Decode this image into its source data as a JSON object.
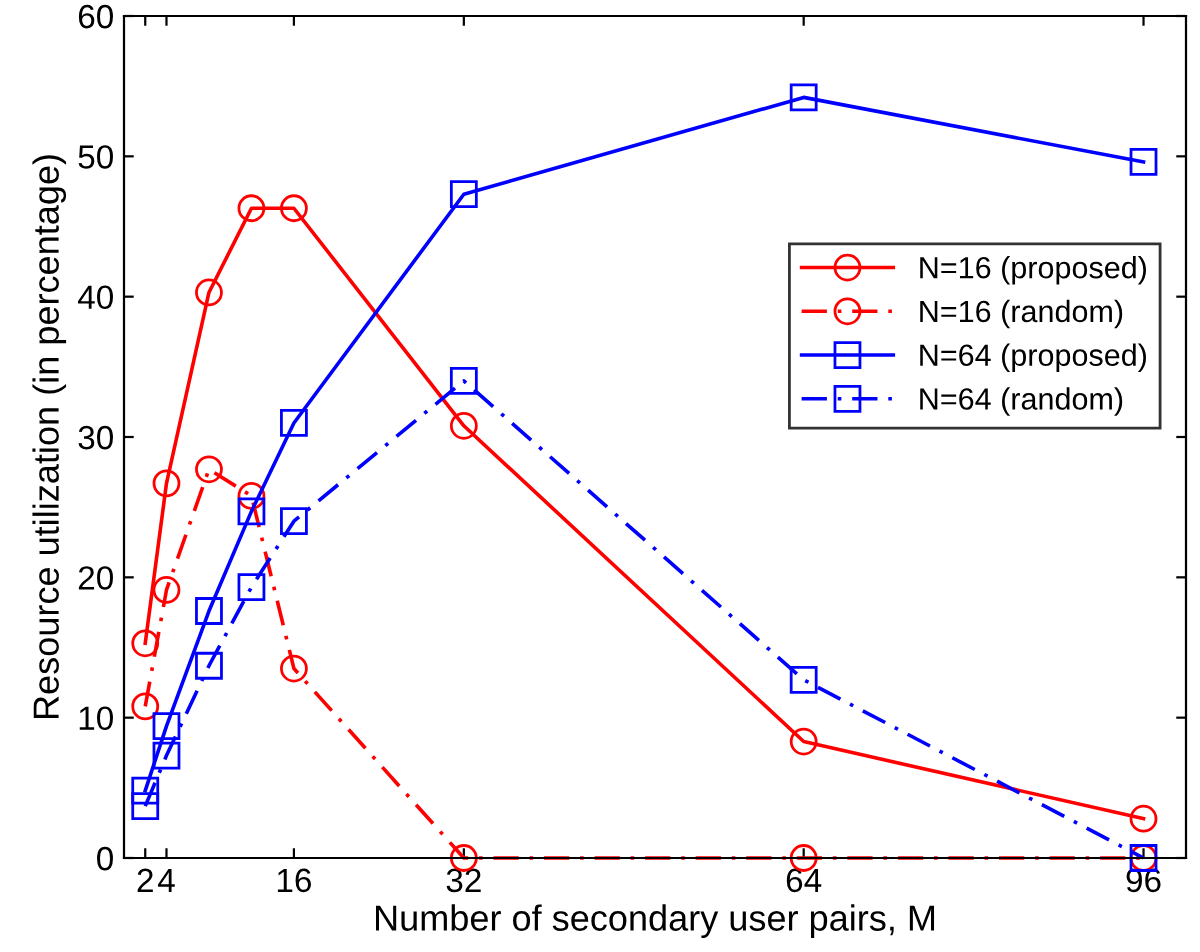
{
  "chart_data": {
    "type": "line",
    "xlabel": "Number of secondary user pairs, M",
    "ylabel": "Resource utilization (in percentage)",
    "x": [
      2,
      4,
      8,
      12,
      16,
      32,
      64,
      96
    ],
    "xlim": [
      0,
      100
    ],
    "xticks": [
      2,
      4,
      16,
      32,
      64,
      96
    ],
    "ylim": [
      0,
      60
    ],
    "yticks": [
      0,
      10,
      20,
      30,
      40,
      50,
      60
    ],
    "grid": false,
    "legend": "right",
    "series": [
      {
        "name": "N=16 (proposed)",
        "color": "#ff0000",
        "marker": "circle",
        "line_style": "solid",
        "values": [
          15.3,
          26.7,
          40.3,
          46.3,
          46.3,
          30.8,
          8.3,
          2.8
        ]
      },
      {
        "name": "N=16 (random)",
        "color": "#ff0000",
        "marker": "circle",
        "line_style": "dashed",
        "values": [
          10.8,
          19.1,
          27.7,
          25.8,
          13.5,
          0,
          0,
          0
        ]
      },
      {
        "name": "N=64 (proposed)",
        "color": "#0000ff",
        "marker": "square",
        "line_style": "solid",
        "values": [
          4.8,
          9.4,
          17.6,
          24.7,
          31,
          47.3,
          54.2,
          49.6
        ]
      },
      {
        "name": "N=64 (random)",
        "color": "#0000ff",
        "marker": "square",
        "line_style": "dashed",
        "values": [
          3.7,
          7.3,
          13.7,
          19.3,
          24,
          34,
          12.7,
          0
        ]
      }
    ]
  }
}
